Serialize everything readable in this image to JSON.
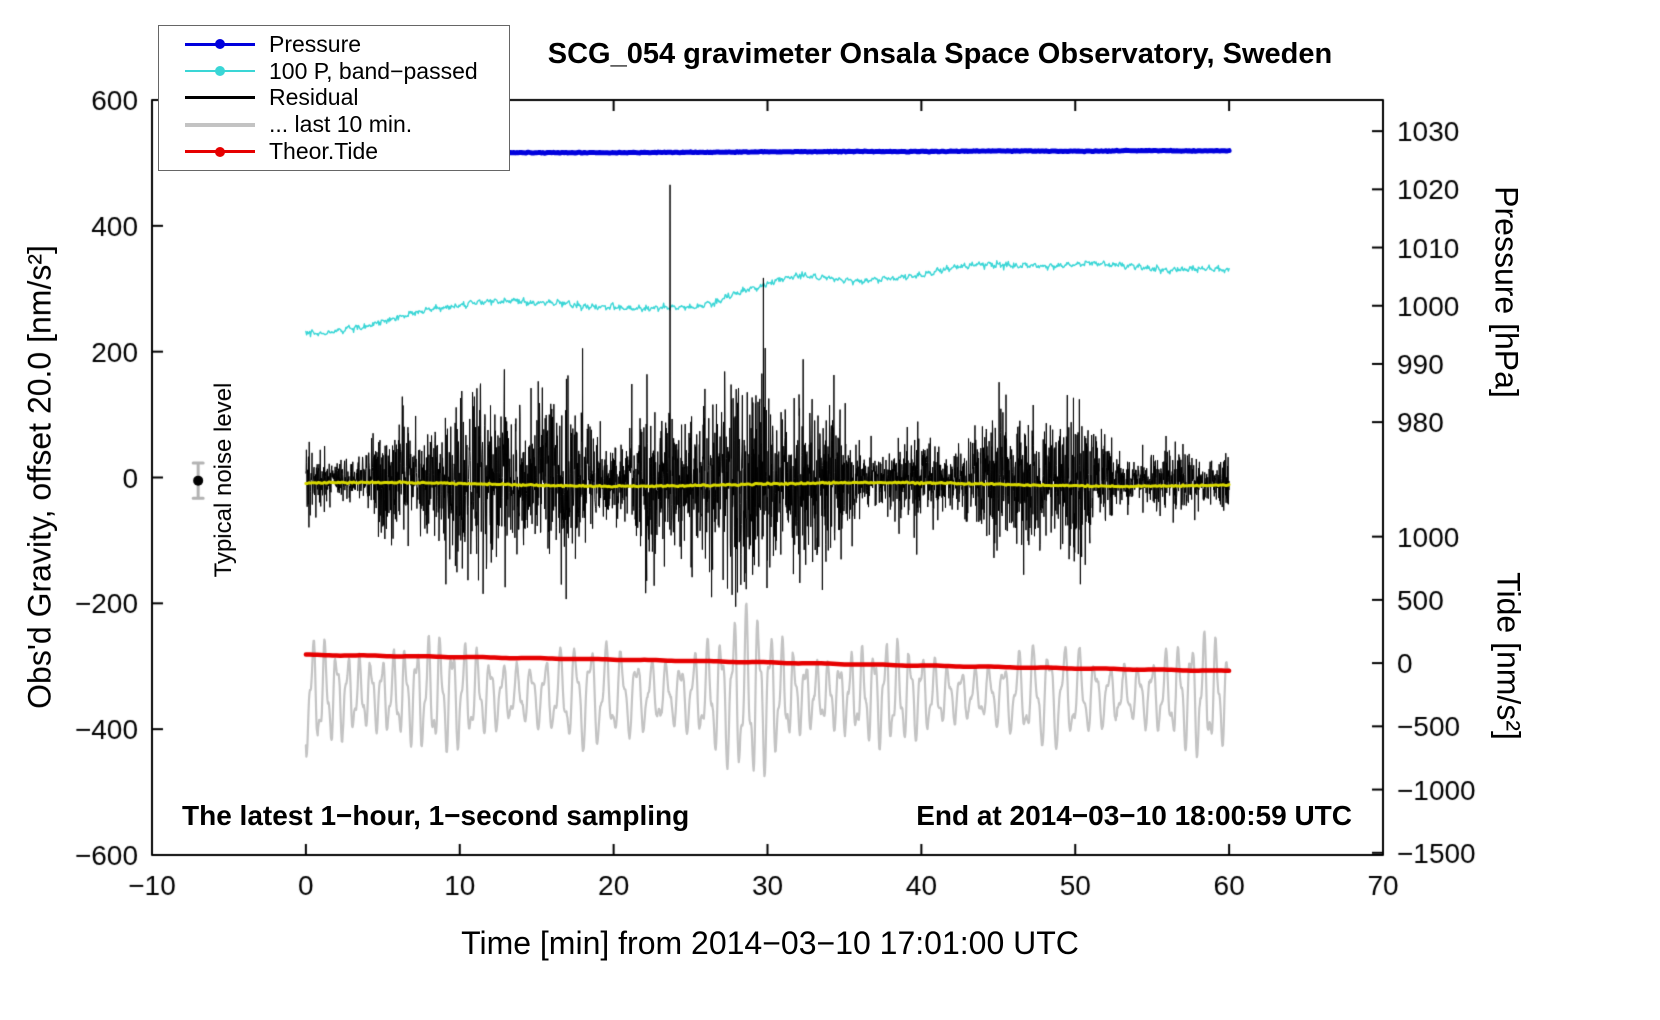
{
  "chart_data": {
    "type": "line",
    "title": "SCG_054 gravimeter Onsala Space Observatory, Sweden",
    "xlabel": "Time [min] from 2014−03−10 17:01:00 UTC",
    "annotations": {
      "noise_label": "Typical noise level",
      "sampling": "The latest 1−hour, 1−second sampling",
      "end_time": "End at 2014−03−10 18:00:59 UTC"
    },
    "legend": [
      {
        "label": "Pressure",
        "color": "#0000dd",
        "marker": "line-dot",
        "line_width": 3
      },
      {
        "label": "100 P, band−passed",
        "color": "#3ad6d6",
        "marker": "line-dot",
        "line_width": 2
      },
      {
        "label": "Residual",
        "color": "#000000",
        "marker": "line",
        "line_width": 3
      },
      {
        "label": "... last 10 min.",
        "color": "#c3c3c3",
        "marker": "line",
        "line_width": 4
      },
      {
        "label": "Theor.Tide",
        "color": "#e60000",
        "marker": "line-dot",
        "line_width": 3
      }
    ],
    "x_axis": {
      "min": -10,
      "max": 70,
      "major_ticks": [
        -10,
        0,
        10,
        20,
        30,
        40,
        50,
        60,
        70
      ]
    },
    "left_axis": {
      "label": "Obs'd Gravity, offset 20.0 [nm/s²]",
      "min": -600,
      "max": 600,
      "major_ticks": [
        -600,
        -400,
        -200,
        0,
        200,
        400,
        600
      ]
    },
    "pressure_axis": {
      "label": "Pressure [hPa]",
      "ticks": [
        1030,
        1020,
        1010,
        1000,
        990,
        980
      ],
      "left_at_1000": 273,
      "left_per_hpa": 9.25
    },
    "tide_axis": {
      "label": "Tide [nm/s²]",
      "ticks": [
        1000,
        500,
        0,
        -500,
        -1000,
        -1500
      ],
      "left_at_0": -295,
      "left_per_unit": 0.201
    },
    "series": {
      "pressure": {
        "name": "Pressure",
        "axis": "pressure",
        "color": "#0000dd",
        "width": 5,
        "points": [
          [
            0,
            1026.2
          ],
          [
            5,
            1026.25
          ],
          [
            10,
            1026.3
          ],
          [
            15,
            1026.3
          ],
          [
            20,
            1026.3
          ],
          [
            25,
            1026.35
          ],
          [
            30,
            1026.45
          ],
          [
            35,
            1026.5
          ],
          [
            40,
            1026.5
          ],
          [
            45,
            1026.6
          ],
          [
            50,
            1026.55
          ],
          [
            55,
            1026.65
          ],
          [
            60,
            1026.6
          ]
        ]
      },
      "band_passed": {
        "name": "100 P, band−passed",
        "axis": "left",
        "color": "#3ad6d6",
        "width": 1.4,
        "noise": 2.0,
        "points": [
          [
            0,
            231
          ],
          [
            1,
            228
          ],
          [
            2,
            233
          ],
          [
            3,
            237
          ],
          [
            4,
            241
          ],
          [
            5,
            247
          ],
          [
            6,
            254
          ],
          [
            7,
            261
          ],
          [
            8,
            267
          ],
          [
            9,
            271
          ],
          [
            10,
            274
          ],
          [
            11,
            277
          ],
          [
            12,
            279
          ],
          [
            13,
            281
          ],
          [
            14,
            280
          ],
          [
            15,
            277
          ],
          [
            16,
            279
          ],
          [
            17,
            277
          ],
          [
            18,
            272
          ],
          [
            19,
            270
          ],
          [
            20,
            272
          ],
          [
            21,
            269
          ],
          [
            22,
            268
          ],
          [
            23,
            270
          ],
          [
            24,
            271
          ],
          [
            25,
            270
          ],
          [
            26,
            274
          ],
          [
            27,
            283
          ],
          [
            28,
            293
          ],
          [
            29,
            299
          ],
          [
            30,
            308
          ],
          [
            31,
            316
          ],
          [
            32,
            321
          ],
          [
            33,
            319
          ],
          [
            34,
            317
          ],
          [
            35,
            314
          ],
          [
            36,
            312
          ],
          [
            37,
            314
          ],
          [
            38,
            317
          ],
          [
            39,
            319
          ],
          [
            40,
            322
          ],
          [
            41,
            327
          ],
          [
            42,
            334
          ],
          [
            43,
            337
          ],
          [
            44,
            339
          ],
          [
            45,
            338
          ],
          [
            46,
            336
          ],
          [
            47,
            337
          ],
          [
            48,
            336
          ],
          [
            49,
            337
          ],
          [
            50,
            339
          ],
          [
            51,
            341
          ],
          [
            52,
            339
          ],
          [
            53,
            337
          ],
          [
            54,
            335
          ],
          [
            55,
            331
          ],
          [
            56,
            330
          ],
          [
            57,
            331
          ],
          [
            58,
            332
          ],
          [
            59,
            331
          ],
          [
            60,
            330
          ]
        ]
      },
      "residual": {
        "name": "Residual",
        "axis": "left",
        "color": "#000000",
        "width": 1,
        "t0": 0,
        "t1": 60,
        "rate_per_min": 60,
        "mean": -5,
        "std": 48,
        "spike_prob": 0.015,
        "spike_scale": 2.0
      },
      "residual_mean": {
        "name": "Residual running mean",
        "axis": "left",
        "color": "#d8d800",
        "width": 3,
        "base": -11,
        "wiggle": 3
      },
      "tide": {
        "name": "Theor.Tide",
        "axis": "tide",
        "color": "#e60000",
        "width": 4.5,
        "points": [
          [
            0,
            65
          ],
          [
            5,
            57
          ],
          [
            10,
            48
          ],
          [
            15,
            38
          ],
          [
            20,
            28
          ],
          [
            25,
            17
          ],
          [
            30,
            5
          ],
          [
            35,
            -8
          ],
          [
            40,
            -20
          ],
          [
            45,
            -31
          ],
          [
            50,
            -42
          ],
          [
            55,
            -52
          ],
          [
            60,
            -62
          ]
        ]
      },
      "last10": {
        "name": "... last 10 min.",
        "axis": "left",
        "color": "#c3c3c3",
        "width": 2.2,
        "t0": 0,
        "t1": 60,
        "center": -345,
        "period_min": 0.85,
        "envelope": [
          [
            0,
            92
          ],
          [
            3,
            100
          ],
          [
            5,
            96
          ],
          [
            8,
            88
          ],
          [
            10,
            86
          ],
          [
            13,
            80
          ],
          [
            15,
            78
          ],
          [
            18,
            82
          ],
          [
            20,
            76
          ],
          [
            23,
            85
          ],
          [
            25,
            92
          ],
          [
            27,
            105
          ],
          [
            29,
            138
          ],
          [
            30,
            125
          ],
          [
            32,
            95
          ],
          [
            35,
            85
          ],
          [
            38,
            80
          ],
          [
            40,
            74
          ],
          [
            43,
            70
          ],
          [
            45,
            68
          ],
          [
            48,
            78
          ],
          [
            50,
            86
          ],
          [
            52,
            80
          ],
          [
            55,
            70
          ],
          [
            57,
            80
          ],
          [
            58,
            98
          ],
          [
            60,
            92
          ]
        ]
      },
      "noise_marker": {
        "x": -7,
        "y": -5,
        "err": 28,
        "dot_color": "#000000",
        "bar_color": "#b3b3b3"
      }
    }
  }
}
